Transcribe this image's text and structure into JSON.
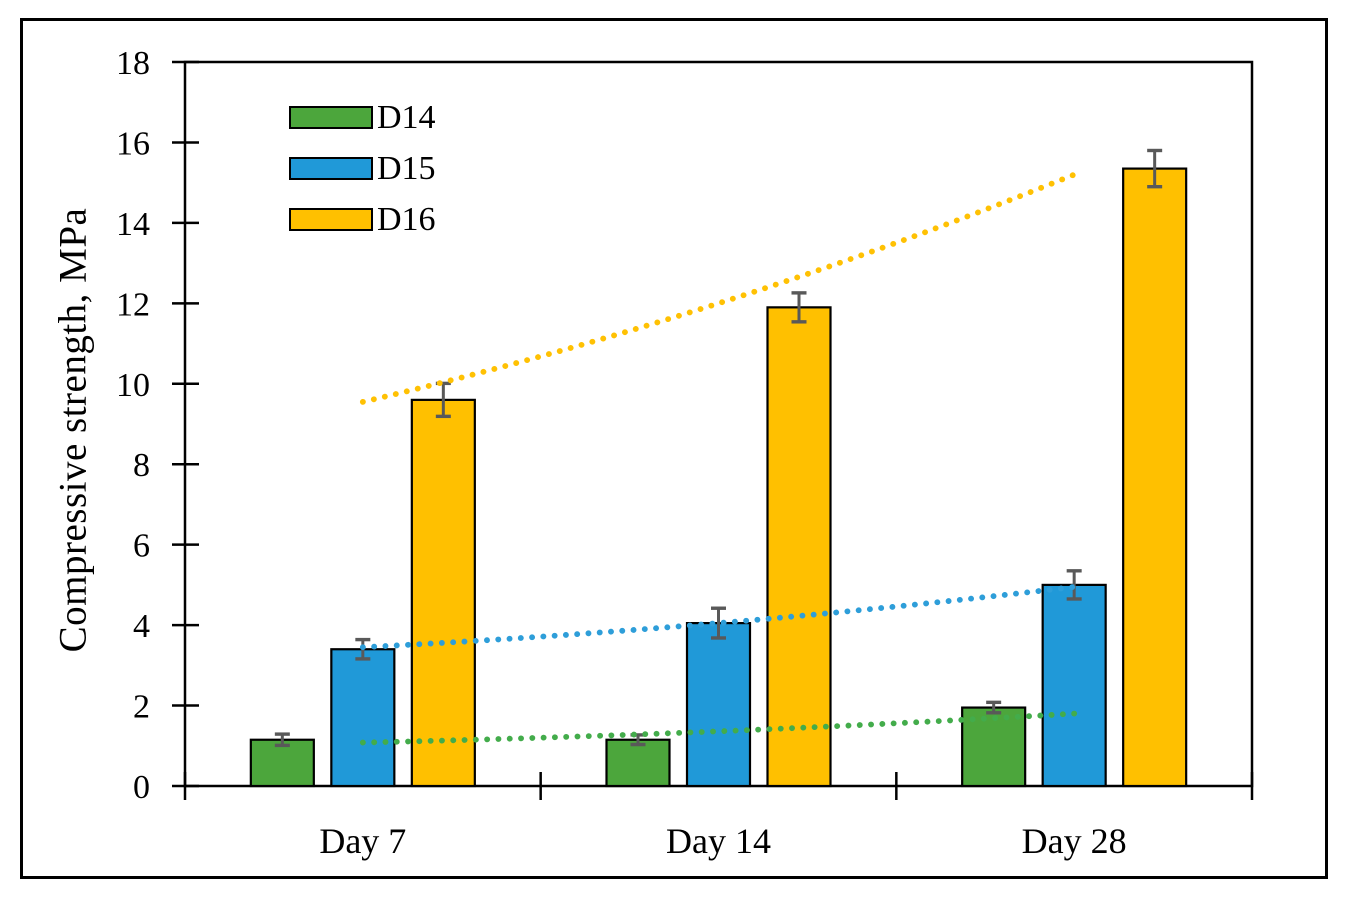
{
  "figure": {
    "background": "#ffffff",
    "frame_color": "#000000"
  },
  "chart_data": {
    "type": "bar",
    "title": "",
    "xlabel": "",
    "ylabel": "Compressive strength, MPa",
    "categories": [
      "Day 7",
      "Day 14",
      "Day 28"
    ],
    "ylim": [
      0,
      18
    ],
    "yticks": [
      0,
      2,
      4,
      6,
      8,
      10,
      12,
      14,
      16,
      18
    ],
    "grid": false,
    "legend_position": "top-left-inside",
    "axis_color": "#000000",
    "error_bar_color": "#595959",
    "series": [
      {
        "name": "D14",
        "color": "#4CA63C",
        "trend_color": "#43AC4B",
        "values": [
          1.15,
          1.15,
          1.95
        ],
        "errors": [
          0.14,
          0.12,
          0.13
        ],
        "trendline": {
          "style": "dotted",
          "points": [
            1.08,
            1.36,
            1.8
          ]
        }
      },
      {
        "name": "D15",
        "color": "#2099D8",
        "trend_color": "#2E9ED9",
        "values": [
          3.4,
          4.05,
          5.0
        ],
        "errors": [
          0.24,
          0.37,
          0.35
        ],
        "trendline": {
          "style": "dotted",
          "points": [
            3.45,
            4.05,
            4.95
          ]
        }
      },
      {
        "name": "D16",
        "color": "#FFC000",
        "trend_color": "#FFC103",
        "values": [
          9.6,
          11.9,
          15.35
        ],
        "errors": [
          0.41,
          0.36,
          0.45
        ],
        "trendline": {
          "style": "dotted",
          "points": [
            9.55,
            12.0,
            15.2
          ]
        }
      }
    ]
  }
}
